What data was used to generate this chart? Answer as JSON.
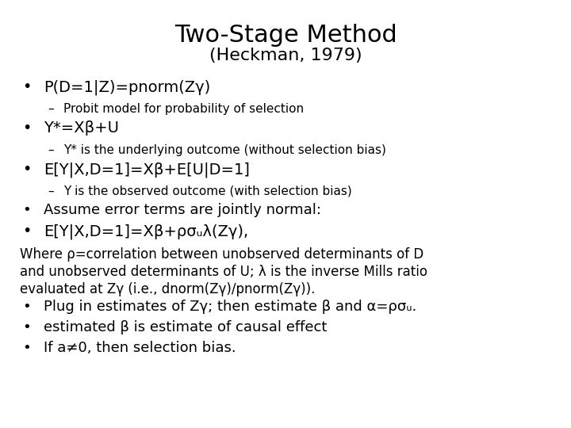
{
  "title": "Two-Stage Method",
  "subtitle": "(Heckman, 1979)",
  "background_color": "#ffffff",
  "text_color": "#000000",
  "title_fontsize": 22,
  "subtitle_fontsize": 16,
  "large_bullet_fontsize": 14,
  "medium_bullet_fontsize": 13,
  "sub_bullet_fontsize": 11,
  "body_fontsize": 12,
  "lines": [
    {
      "type": "bullet",
      "size": "large",
      "text": "P(D=1|Z)=pnorm(Zγ)"
    },
    {
      "type": "sub_bullet",
      "text": "Probit model for probability of selection"
    },
    {
      "type": "bullet",
      "size": "large",
      "text": "Y*=Xβ+U"
    },
    {
      "type": "sub_bullet",
      "text": "Y* is the underlying outcome (without selection bias)"
    },
    {
      "type": "bullet",
      "size": "large",
      "text": "E[Y|X,D=1]=Xβ+E[U|D=1]"
    },
    {
      "type": "sub_bullet",
      "text": "Y is the observed outcome (with selection bias)"
    },
    {
      "type": "bullet",
      "size": "medium",
      "text": "Assume error terms are jointly normal:"
    },
    {
      "type": "bullet",
      "size": "large",
      "text": "E[Y|X,D=1]=Xβ+ρσᵤλ(Zγ),"
    },
    {
      "type": "body",
      "text": "Where ρ=correlation between unobserved determinants of D\nand unobserved determinants of U; λ is the inverse Mills ratio\nevaluated at Zγ (i.e., dnorm(Zγ)/pnorm(Zγ))."
    },
    {
      "type": "bullet",
      "size": "medium",
      "text": "Plug in estimates of Zγ; then estimate β and α=ρσᵤ."
    },
    {
      "type": "bullet",
      "size": "medium",
      "text": "estimated β is estimate of causal effect"
    },
    {
      "type": "bullet",
      "size": "medium",
      "text": "If a≠0, then selection bias."
    }
  ]
}
